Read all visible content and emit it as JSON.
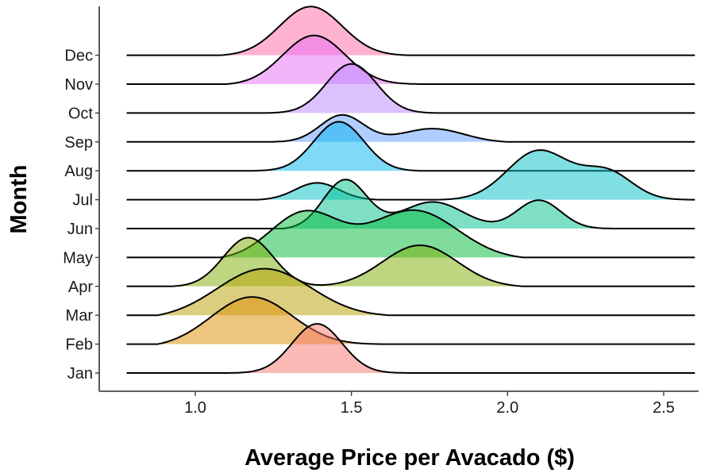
{
  "chart_data": {
    "type": "ridgeline",
    "xlabel": "Average Price per Avacado ($)",
    "ylabel": "Month",
    "xlim": [
      0.78,
      2.6
    ],
    "x_ticks": [
      {
        "value": 1.0,
        "label": "1.0"
      },
      {
        "value": 1.5,
        "label": "1.5"
      },
      {
        "value": 2.0,
        "label": "2.0"
      },
      {
        "value": 2.5,
        "label": "2.5"
      }
    ],
    "grid": false,
    "legend": "none",
    "series": [
      {
        "name": "Jan",
        "color": "#F8766D",
        "peaks": [
          [
            1.39,
            0.08,
            1.0
          ]
        ],
        "range": [
          1.1,
          1.7
        ]
      },
      {
        "name": "Feb",
        "color": "#DE8C00",
        "peaks": [
          [
            1.18,
            0.13,
            1.0
          ]
        ],
        "range": [
          0.88,
          1.62
        ]
      },
      {
        "name": "Mar",
        "color": "#B79F00",
        "peaks": [
          [
            1.22,
            0.15,
            1.0
          ]
        ],
        "range": [
          0.88,
          1.62
        ]
      },
      {
        "name": "Apr",
        "color": "#7CAE00",
        "peaks": [
          [
            1.17,
            0.08,
            1.0
          ],
          [
            1.72,
            0.12,
            0.85
          ]
        ],
        "range": [
          0.92,
          2.05
        ]
      },
      {
        "name": "May",
        "color": "#00BA38",
        "peaks": [
          [
            1.35,
            0.11,
            0.95
          ],
          [
            1.7,
            0.14,
            1.0
          ]
        ],
        "range": [
          1.08,
          2.05
        ]
      },
      {
        "name": "Jun",
        "color": "#00C08B",
        "peaks": [
          [
            1.48,
            0.07,
            1.0
          ],
          [
            1.76,
            0.1,
            0.55
          ],
          [
            2.1,
            0.07,
            0.58
          ]
        ],
        "range": [
          1.28,
          2.35
        ]
      },
      {
        "name": "Jul",
        "color": "#00BFC4",
        "peaks": [
          [
            1.39,
            0.07,
            0.35
          ],
          [
            2.1,
            0.1,
            1.0
          ],
          [
            2.32,
            0.08,
            0.55
          ]
        ],
        "range": [
          1.2,
          2.58
        ]
      },
      {
        "name": "Aug",
        "color": "#00B4F0",
        "peaks": [
          [
            1.46,
            0.08,
            1.0
          ]
        ],
        "range": [
          1.18,
          1.72
        ]
      },
      {
        "name": "Sep",
        "color": "#619CFF",
        "peaks": [
          [
            1.47,
            0.07,
            0.55
          ],
          [
            1.76,
            0.1,
            0.28
          ]
        ],
        "range": [
          1.2,
          2.0
        ]
      },
      {
        "name": "Oct",
        "color": "#B983FF",
        "peaks": [
          [
            1.5,
            0.08,
            1.0
          ]
        ],
        "range": [
          1.22,
          1.78
        ]
      },
      {
        "name": "Nov",
        "color": "#E76BF3",
        "peaks": [
          [
            1.38,
            0.1,
            1.0
          ]
        ],
        "range": [
          1.1,
          1.75
        ]
      },
      {
        "name": "Dec",
        "color": "#FF67A4",
        "peaks": [
          [
            1.37,
            0.1,
            1.0
          ]
        ],
        "range": [
          1.08,
          1.68
        ]
      }
    ]
  }
}
